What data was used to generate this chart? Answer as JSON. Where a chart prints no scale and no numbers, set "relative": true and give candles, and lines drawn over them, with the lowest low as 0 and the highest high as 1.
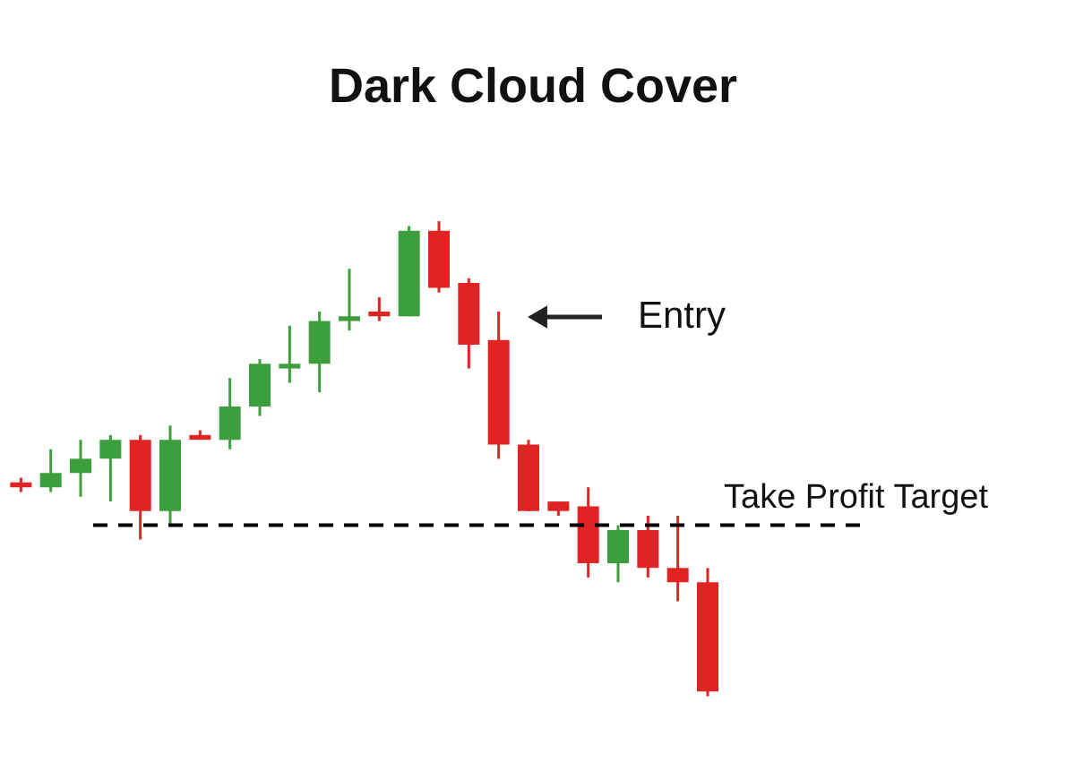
{
  "chart_data": {
    "type": "candlestick",
    "title": "Dark Cloud Cover",
    "relative": true,
    "tick_labels": false,
    "categories": [
      null,
      null,
      null,
      null,
      null,
      null,
      null,
      null,
      null,
      null,
      null,
      null,
      null,
      null,
      null,
      null,
      null,
      null,
      null,
      null,
      null,
      null,
      null,
      null
    ],
    "ohlc": [
      [
        0.45,
        0.46,
        0.43,
        0.44
      ],
      [
        0.44,
        0.52,
        0.43,
        0.47
      ],
      [
        0.47,
        0.54,
        0.42,
        0.5
      ],
      [
        0.5,
        0.55,
        0.41,
        0.54
      ],
      [
        0.54,
        0.55,
        0.33,
        0.39
      ],
      [
        0.39,
        0.57,
        0.36,
        0.54
      ],
      [
        0.55,
        0.56,
        0.54,
        0.54
      ],
      [
        0.54,
        0.67,
        0.52,
        0.61
      ],
      [
        0.61,
        0.71,
        0.59,
        0.7
      ],
      [
        0.69,
        0.78,
        0.66,
        0.7
      ],
      [
        0.7,
        0.81,
        0.64,
        0.79
      ],
      [
        0.79,
        0.9,
        0.77,
        0.8
      ],
      [
        0.81,
        0.84,
        0.79,
        0.8
      ],
      [
        0.8,
        0.99,
        0.8,
        0.98
      ],
      [
        0.98,
        1.0,
        0.85,
        0.86
      ],
      [
        0.87,
        0.88,
        0.69,
        0.74
      ],
      [
        0.75,
        0.81,
        0.5,
        0.53
      ],
      [
        0.53,
        0.54,
        0.39,
        0.39
      ],
      [
        0.41,
        0.41,
        0.38,
        0.39
      ],
      [
        0.4,
        0.44,
        0.25,
        0.28
      ],
      [
        0.28,
        0.36,
        0.24,
        0.35
      ],
      [
        0.35,
        0.38,
        0.25,
        0.27
      ],
      [
        0.27,
        0.38,
        0.2,
        0.24
      ],
      [
        0.24,
        0.27,
        0.0,
        0.01
      ]
    ],
    "colors": [
      "#e02424",
      "#3c9e3c",
      "#3c9e3c",
      "#3c9e3c",
      "#e02424",
      "#3c9e3c",
      "#e02424",
      "#3c9e3c",
      "#3c9e3c",
      "#3c9e3c",
      "#3c9e3c",
      "#3c9e3c",
      "#e02424",
      "#3c9e3c",
      "#e02424",
      "#e02424",
      "#e02424",
      "#e02424",
      "#e02424",
      "#e02424",
      "#3c9e3c",
      "#e02424",
      "#e02424",
      "#e02424"
    ],
    "ref_lines": [
      {
        "axis": "y",
        "value": 0.36,
        "label": "Take Profit Target",
        "color": "#000000",
        "line_style": "dashed"
      }
    ],
    "annotations": [
      "Entry"
    ]
  }
}
